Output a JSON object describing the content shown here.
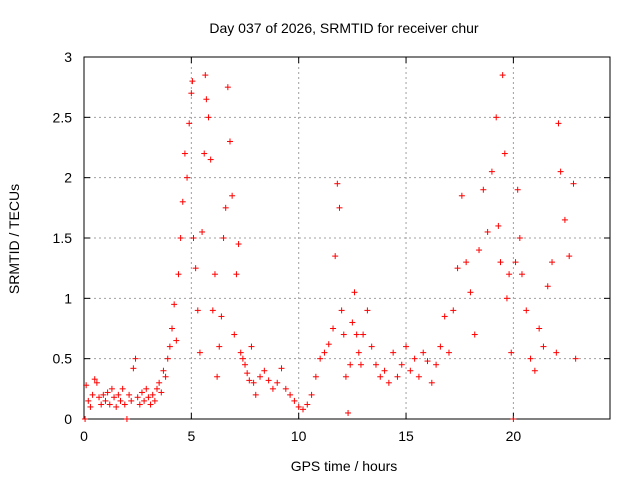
{
  "chart_data": {
    "type": "scatter",
    "title": "Day 037 of 2026, SRMTID for receiver chur",
    "xlabel": "GPS time / hours",
    "ylabel": "SRMTID / TECUs",
    "xlim": [
      0,
      24.5
    ],
    "ylim": [
      0,
      3
    ],
    "x_ticks": [
      0,
      5,
      10,
      15,
      20
    ],
    "x_tick_labels": [
      "0",
      "5",
      "10",
      "15",
      "20"
    ],
    "y_ticks": [
      0,
      0.5,
      1,
      1.5,
      2,
      2.5,
      3
    ],
    "y_tick_labels": [
      "0",
      "0.5",
      "1",
      "1.5",
      "2",
      "2.5",
      "3"
    ],
    "grid": true,
    "marker": "+",
    "series": [
      {
        "name": "SRMTID",
        "color": "#ff0000",
        "points": [
          [
            0.05,
            0.0
          ],
          [
            0.1,
            0.28
          ],
          [
            0.2,
            0.15
          ],
          [
            0.3,
            0.1
          ],
          [
            0.4,
            0.2
          ],
          [
            0.5,
            0.33
          ],
          [
            0.6,
            0.3
          ],
          [
            0.7,
            0.18
          ],
          [
            0.8,
            0.12
          ],
          [
            0.9,
            0.2
          ],
          [
            1.0,
            0.15
          ],
          [
            1.1,
            0.22
          ],
          [
            1.2,
            0.12
          ],
          [
            1.3,
            0.25
          ],
          [
            1.4,
            0.18
          ],
          [
            1.5,
            0.1
          ],
          [
            1.6,
            0.2
          ],
          [
            1.7,
            0.15
          ],
          [
            1.8,
            0.25
          ],
          [
            1.9,
            0.12
          ],
          [
            2.0,
            0.0
          ],
          [
            2.1,
            0.2
          ],
          [
            2.2,
            0.15
          ],
          [
            2.3,
            0.42
          ],
          [
            2.4,
            0.5
          ],
          [
            2.5,
            0.18
          ],
          [
            2.6,
            0.12
          ],
          [
            2.7,
            0.22
          ],
          [
            2.8,
            0.15
          ],
          [
            2.9,
            0.25
          ],
          [
            3.0,
            0.18
          ],
          [
            3.1,
            0.12
          ],
          [
            3.2,
            0.2
          ],
          [
            3.3,
            0.15
          ],
          [
            3.4,
            0.25
          ],
          [
            3.5,
            0.3
          ],
          [
            3.6,
            0.22
          ],
          [
            3.7,
            0.4
          ],
          [
            3.8,
            0.35
          ],
          [
            3.9,
            0.5
          ],
          [
            4.0,
            0.6
          ],
          [
            4.1,
            0.75
          ],
          [
            4.2,
            0.95
          ],
          [
            4.3,
            0.65
          ],
          [
            4.4,
            1.2
          ],
          [
            4.5,
            1.5
          ],
          [
            4.6,
            1.8
          ],
          [
            4.7,
            2.2
          ],
          [
            4.8,
            2.0
          ],
          [
            4.9,
            2.45
          ],
          [
            5.0,
            2.7
          ],
          [
            5.05,
            2.8
          ],
          [
            5.1,
            1.5
          ],
          [
            5.2,
            1.25
          ],
          [
            5.3,
            0.9
          ],
          [
            5.4,
            0.55
          ],
          [
            5.5,
            1.55
          ],
          [
            5.6,
            2.2
          ],
          [
            5.65,
            2.85
          ],
          [
            5.7,
            2.65
          ],
          [
            5.8,
            2.5
          ],
          [
            5.9,
            2.15
          ],
          [
            6.0,
            0.9
          ],
          [
            6.1,
            1.2
          ],
          [
            6.2,
            0.35
          ],
          [
            6.3,
            0.6
          ],
          [
            6.4,
            0.85
          ],
          [
            6.5,
            1.5
          ],
          [
            6.6,
            1.75
          ],
          [
            6.7,
            2.75
          ],
          [
            6.8,
            2.3
          ],
          [
            6.9,
            1.85
          ],
          [
            7.0,
            0.7
          ],
          [
            7.1,
            1.2
          ],
          [
            7.2,
            1.45
          ],
          [
            7.3,
            0.55
          ],
          [
            7.4,
            0.5
          ],
          [
            7.5,
            0.45
          ],
          [
            7.6,
            0.38
          ],
          [
            7.7,
            0.32
          ],
          [
            7.8,
            0.6
          ],
          [
            7.9,
            0.3
          ],
          [
            8.0,
            0.2
          ],
          [
            8.2,
            0.35
          ],
          [
            8.4,
            0.4
          ],
          [
            8.6,
            0.32
          ],
          [
            8.8,
            0.25
          ],
          [
            9.0,
            0.3
          ],
          [
            9.2,
            0.42
          ],
          [
            9.4,
            0.25
          ],
          [
            9.6,
            0.2
          ],
          [
            9.8,
            0.15
          ],
          [
            10.0,
            0.1
          ],
          [
            10.2,
            0.08
          ],
          [
            10.4,
            0.12
          ],
          [
            10.6,
            0.2
          ],
          [
            10.8,
            0.35
          ],
          [
            11.0,
            0.5
          ],
          [
            11.2,
            0.55
          ],
          [
            11.4,
            0.62
          ],
          [
            11.6,
            0.75
          ],
          [
            11.7,
            1.35
          ],
          [
            11.8,
            1.95
          ],
          [
            11.9,
            1.75
          ],
          [
            12.0,
            0.9
          ],
          [
            12.1,
            0.7
          ],
          [
            12.2,
            0.35
          ],
          [
            12.3,
            0.05
          ],
          [
            12.4,
            0.45
          ],
          [
            12.5,
            0.8
          ],
          [
            12.6,
            1.05
          ],
          [
            12.7,
            0.7
          ],
          [
            12.8,
            0.55
          ],
          [
            12.9,
            0.45
          ],
          [
            13.0,
            0.7
          ],
          [
            13.2,
            0.9
          ],
          [
            13.4,
            0.6
          ],
          [
            13.6,
            0.45
          ],
          [
            13.8,
            0.35
          ],
          [
            14.0,
            0.4
          ],
          [
            14.2,
            0.3
          ],
          [
            14.4,
            0.55
          ],
          [
            14.6,
            0.35
          ],
          [
            14.8,
            0.45
          ],
          [
            15.0,
            0.6
          ],
          [
            15.2,
            0.4
          ],
          [
            15.4,
            0.5
          ],
          [
            15.6,
            0.35
          ],
          [
            15.8,
            0.55
          ],
          [
            16.0,
            0.48
          ],
          [
            16.2,
            0.3
          ],
          [
            16.4,
            0.45
          ],
          [
            16.6,
            0.6
          ],
          [
            16.8,
            0.85
          ],
          [
            17.0,
            0.55
          ],
          [
            17.2,
            0.9
          ],
          [
            17.4,
            1.25
          ],
          [
            17.6,
            1.85
          ],
          [
            17.8,
            1.3
          ],
          [
            18.0,
            1.05
          ],
          [
            18.2,
            0.7
          ],
          [
            18.4,
            1.4
          ],
          [
            18.6,
            1.9
          ],
          [
            18.8,
            1.55
          ],
          [
            19.0,
            2.05
          ],
          [
            19.2,
            2.5
          ],
          [
            19.3,
            1.6
          ],
          [
            19.4,
            1.3
          ],
          [
            19.5,
            2.85
          ],
          [
            19.6,
            2.2
          ],
          [
            19.7,
            1.0
          ],
          [
            19.8,
            1.2
          ],
          [
            19.9,
            0.55
          ],
          [
            20.0,
            0.0
          ],
          [
            20.1,
            1.3
          ],
          [
            20.2,
            1.9
          ],
          [
            20.3,
            1.5
          ],
          [
            20.4,
            1.2
          ],
          [
            20.6,
            0.9
          ],
          [
            20.8,
            0.5
          ],
          [
            21.0,
            0.4
          ],
          [
            21.2,
            0.75
          ],
          [
            21.4,
            0.6
          ],
          [
            21.6,
            1.1
          ],
          [
            21.8,
            1.3
          ],
          [
            22.0,
            0.55
          ],
          [
            22.1,
            2.45
          ],
          [
            22.2,
            2.05
          ],
          [
            22.4,
            1.65
          ],
          [
            22.6,
            1.35
          ],
          [
            22.8,
            1.95
          ],
          [
            22.9,
            0.5
          ]
        ]
      }
    ]
  }
}
